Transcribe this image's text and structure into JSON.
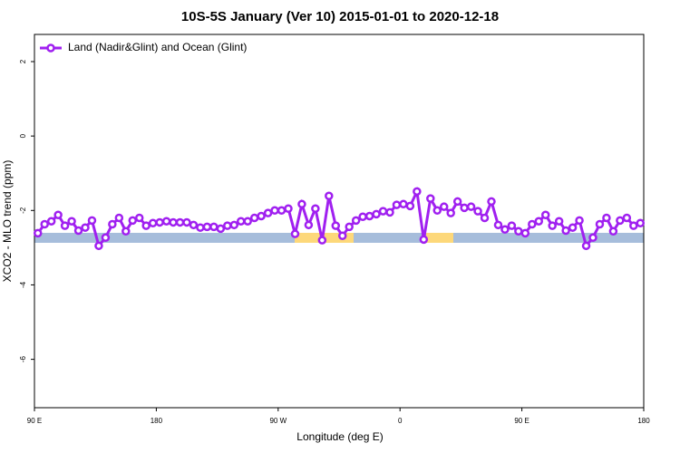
{
  "chart_data": {
    "type": "line",
    "title": "10S-5S January (Ver 10)   2015-01-01 to 2020-12-18",
    "x_label": "Longitude (deg E)",
    "y_label": "XCO2 - MLO trend (ppm)",
    "legend_position": "top-left",
    "xlim": [
      90,
      540
    ],
    "ylim": [
      -7.3,
      2.73
    ],
    "xticks": [
      {
        "value": 90,
        "label": "90 E"
      },
      180,
      {
        "value": 270,
        "label": "90 W"
      },
      {
        "value": 360,
        "label": "0"
      },
      {
        "value": 450,
        "label": "90 E"
      },
      {
        "value": 540,
        "label": "180"
      }
    ],
    "yticks": [
      -6,
      -4,
      -2,
      0,
      2
    ],
    "x": [
      92.5,
      97.5,
      102.5,
      107.5,
      112.5,
      117.5,
      122.5,
      127.5,
      132.5,
      137.5,
      142.5,
      147.5,
      152.5,
      157.5,
      162.5,
      167.5,
      172.5,
      177.5,
      182.5,
      187.5,
      192.5,
      197.5,
      202.5,
      207.5,
      212.5,
      217.5,
      222.5,
      227.5,
      232.5,
      237.5,
      242.5,
      247.5,
      252.5,
      257.5,
      262.5,
      267.5,
      272.5,
      277.5,
      282.5,
      287.5,
      292.5,
      297.5,
      302.5,
      307.5,
      312.5,
      317.5,
      322.5,
      327.5,
      332.5,
      337.5,
      342.5,
      347.5,
      352.5,
      357.5,
      362.5,
      367.5,
      372.5,
      377.5,
      382.5,
      387.5,
      392.5,
      397.5,
      402.5,
      407.5,
      412.5,
      417.5,
      422.5,
      427.5,
      432.5,
      437.5,
      442.5,
      447.5,
      452.5,
      457.5,
      462.5,
      467.5,
      472.5,
      477.5,
      482.5,
      487.5,
      492.5,
      497.5,
      502.5,
      507.5,
      512.5,
      517.5,
      522.5,
      527.5,
      532.5,
      537.5
    ],
    "series": [
      {
        "name": "Land (Nadir&Glint) and Ocean (Glint)",
        "color": "#a020f0",
        "values": [
          -2.61,
          -2.37,
          -2.29,
          -2.12,
          -2.41,
          -2.29,
          -2.54,
          -2.46,
          -2.27,
          -2.95,
          -2.73,
          -2.37,
          -2.2,
          -2.56,
          -2.27,
          -2.2,
          -2.41,
          -2.34,
          -2.32,
          -2.29,
          -2.32,
          -2.32,
          -2.32,
          -2.39,
          -2.46,
          -2.44,
          -2.44,
          -2.49,
          -2.41,
          -2.39,
          -2.29,
          -2.29,
          -2.2,
          -2.15,
          -2.07,
          -2.0,
          -2.0,
          -1.95,
          -2.63,
          -1.83,
          -2.39,
          -1.95,
          -2.8,
          -1.61,
          -2.41,
          -2.68,
          -2.44,
          -2.27,
          -2.17,
          -2.15,
          -2.1,
          -2.02,
          -2.05,
          -1.85,
          -1.83,
          -1.88,
          -1.49,
          -2.78,
          -1.68,
          -2.0,
          -1.9,
          -2.07,
          -1.76,
          -1.93,
          -1.9,
          -2.02,
          -2.2,
          -1.76,
          -2.39,
          -2.51,
          -2.41,
          -2.56,
          -2.61,
          -2.37,
          -2.29,
          -2.12,
          -2.41,
          -2.29,
          -2.54,
          -2.46,
          -2.27,
          -2.95,
          -2.73,
          -2.37,
          -2.2,
          -2.56,
          -2.27,
          -2.2,
          -2.41,
          -2.34
        ]
      }
    ]
  }
}
